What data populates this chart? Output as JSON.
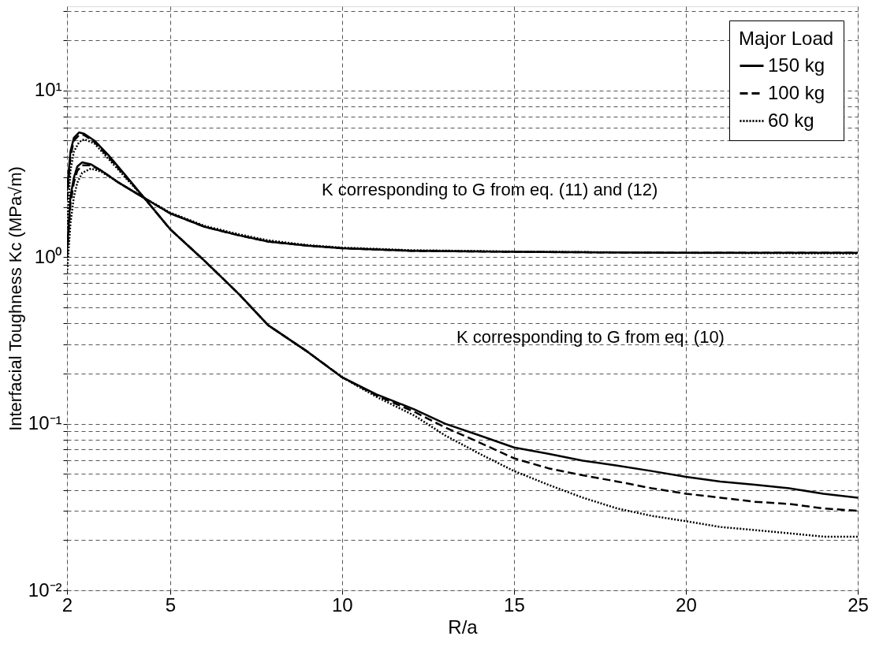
{
  "chart_data": {
    "type": "line",
    "xlabel": "R/a",
    "ylabel": "Interfacial Toughness Kc  (MPa√m)",
    "legend_title": "Major Load",
    "xlim": [
      2,
      25
    ],
    "xticks": [
      2,
      5,
      10,
      15,
      20,
      25
    ],
    "ylim": [
      0.01,
      32
    ],
    "log": "y",
    "yticks": [
      {
        "value": 0.01,
        "label": "10⁻²"
      },
      {
        "value": 0.02,
        "label": null
      },
      {
        "value": 0.03,
        "label": null
      },
      {
        "value": 0.04,
        "label": null
      },
      {
        "value": 0.05,
        "label": null
      },
      {
        "value": 0.06,
        "label": null
      },
      {
        "value": 0.07,
        "label": null
      },
      {
        "value": 0.08,
        "label": null
      },
      {
        "value": 0.09,
        "label": null
      },
      {
        "value": 0.1,
        "label": "10⁻¹"
      },
      {
        "value": 0.2,
        "label": null
      },
      {
        "value": 0.3,
        "label": null
      },
      {
        "value": 0.4,
        "label": null
      },
      {
        "value": 0.5,
        "label": null
      },
      {
        "value": 0.6,
        "label": null
      },
      {
        "value": 0.7,
        "label": null
      },
      {
        "value": 0.8,
        "label": null
      },
      {
        "value": 0.9,
        "label": null
      },
      {
        "value": 1,
        "label": "10⁰"
      },
      {
        "value": 2,
        "label": null
      },
      {
        "value": 3,
        "label": null
      },
      {
        "value": 4,
        "label": null
      },
      {
        "value": 5,
        "label": null
      },
      {
        "value": 6,
        "label": null
      },
      {
        "value": 7,
        "label": null
      },
      {
        "value": 8,
        "label": null
      },
      {
        "value": 9,
        "label": null
      },
      {
        "value": 10,
        "label": "10¹"
      },
      {
        "value": 20,
        "label": null
      },
      {
        "value": 30,
        "label": null
      }
    ],
    "grid": true,
    "legend": "top right",
    "series": [
      {
        "name": "150 kg",
        "color": "#000000",
        "line_style": "solid",
        "x": [
          2,
          2.1,
          2.2,
          2.35,
          2.5,
          2.8,
          3.2,
          3.7,
          4.25,
          5,
          6,
          7,
          7.85,
          9,
          10,
          11,
          12.1,
          13,
          14,
          15,
          16,
          17,
          18,
          19,
          20,
          21,
          22,
          23,
          24,
          25
        ],
        "values": [
          2.5,
          4.3,
          5.2,
          5.6,
          5.5,
          5.0,
          4.1,
          3.1,
          2.26,
          1.47,
          0.95,
          0.6,
          0.39,
          0.27,
          0.19,
          0.15,
          0.122,
          0.1,
          0.085,
          0.072,
          0.066,
          0.06,
          0.056,
          0.052,
          0.048,
          0.045,
          0.043,
          0.041,
          0.038,
          0.036
        ]
      },
      {
        "name": "100 kg",
        "color": "#000000",
        "line_style": "dashed",
        "x": [
          2,
          2.1,
          2.2,
          2.35,
          2.5,
          2.8,
          3.2,
          3.7,
          4.25,
          5,
          6,
          7,
          7.85,
          9,
          10,
          11,
          12.1,
          13,
          14,
          15,
          16,
          17,
          18,
          19,
          20,
          21,
          22,
          23,
          24,
          25
        ],
        "values": [
          2.2,
          4.0,
          5.0,
          5.4,
          5.4,
          4.9,
          4.0,
          3.05,
          2.26,
          1.47,
          0.95,
          0.6,
          0.39,
          0.27,
          0.19,
          0.148,
          0.118,
          0.095,
          0.077,
          0.062,
          0.054,
          0.049,
          0.045,
          0.041,
          0.038,
          0.036,
          0.034,
          0.033,
          0.031,
          0.03
        ]
      },
      {
        "name": "60 kg",
        "color": "#000000",
        "line_style": "dotted",
        "x": [
          2,
          2.1,
          2.2,
          2.35,
          2.5,
          2.8,
          3.2,
          3.7,
          4.25,
          5,
          6,
          7,
          7.85,
          9,
          10,
          11,
          12.1,
          13,
          14,
          15,
          16,
          17,
          18,
          19,
          20,
          21,
          22,
          23,
          24,
          25
        ],
        "values": [
          1.5,
          3.3,
          4.3,
          4.9,
          5.1,
          4.8,
          3.9,
          3.0,
          2.26,
          1.47,
          0.95,
          0.6,
          0.39,
          0.27,
          0.19,
          0.145,
          0.112,
          0.085,
          0.066,
          0.052,
          0.043,
          0.036,
          0.031,
          0.028,
          0.026,
          0.024,
          0.023,
          0.022,
          0.021,
          0.021
        ]
      },
      {
        "color": "#000000",
        "line_style": "solid",
        "x": [
          2,
          2.1,
          2.2,
          2.3,
          2.44,
          2.7,
          3.0,
          3.5,
          4.25,
          5,
          6,
          7,
          7.85,
          9,
          10,
          12,
          15,
          20,
          25
        ],
        "values": [
          1.1,
          2.3,
          3.0,
          3.5,
          3.7,
          3.6,
          3.3,
          2.8,
          2.26,
          1.83,
          1.52,
          1.35,
          1.24,
          1.17,
          1.13,
          1.09,
          1.075,
          1.06,
          1.06
        ]
      },
      {
        "color": "#000000",
        "line_style": "dashed",
        "x": [
          2,
          2.1,
          2.2,
          2.3,
          2.44,
          2.7,
          3.0,
          3.5,
          4.25,
          5,
          6,
          7,
          7.85,
          9,
          10,
          12,
          15,
          20,
          25
        ],
        "values": [
          1.0,
          2.1,
          2.8,
          3.3,
          3.55,
          3.55,
          3.3,
          2.8,
          2.26,
          1.83,
          1.52,
          1.35,
          1.24,
          1.17,
          1.13,
          1.09,
          1.075,
          1.06,
          1.06
        ]
      },
      {
        "color": "#000000",
        "line_style": "dotted",
        "x": [
          2,
          2.1,
          2.2,
          2.3,
          2.44,
          2.7,
          3.0,
          3.5,
          4.25,
          5,
          6,
          7,
          7.85,
          9,
          10,
          12,
          15,
          20,
          25
        ],
        "values": [
          0.8,
          1.6,
          2.3,
          2.8,
          3.2,
          3.4,
          3.25,
          2.8,
          2.26,
          1.85,
          1.54,
          1.37,
          1.26,
          1.18,
          1.14,
          1.1,
          1.08,
          1.06,
          1.05
        ]
      }
    ],
    "annotations": [
      "K corresponding to G from eq. (11) and (12)",
      "K corresponding to G from eq. (10)"
    ]
  }
}
